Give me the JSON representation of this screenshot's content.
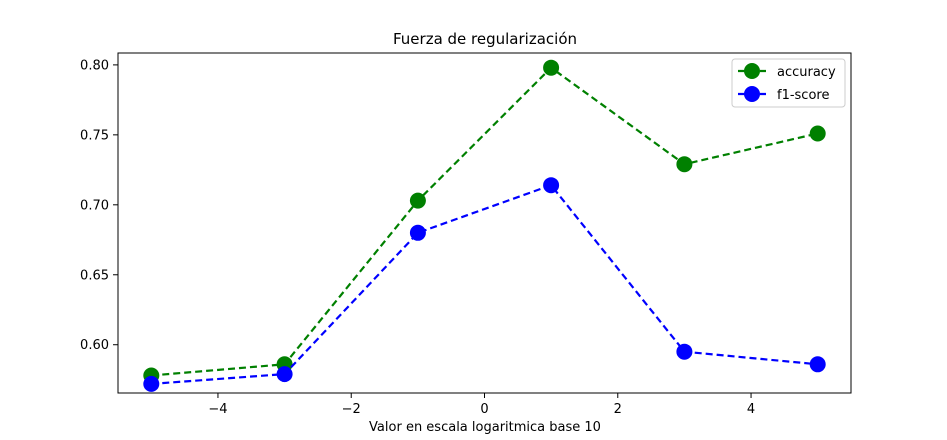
{
  "chart_data": {
    "type": "line",
    "title": "Fuerza de regularización",
    "xlabel": "Valor en escala logaritmica base 10",
    "ylabel": "",
    "x": [
      -5,
      -3,
      -1,
      1,
      3,
      5
    ],
    "xlim": [
      -5.5,
      5.5
    ],
    "ylim": [
      0.5655,
      0.8085
    ],
    "xticks": [
      -4,
      -2,
      0,
      2,
      4
    ],
    "xtick_labels": [
      "−4",
      "−2",
      "0",
      "2",
      "4"
    ],
    "yticks": [
      0.6,
      0.65,
      0.7,
      0.75,
      0.8
    ],
    "ytick_labels": [
      "0.60",
      "0.65",
      "0.70",
      "0.75",
      "0.80"
    ],
    "grid": false,
    "legend_position": "top-right",
    "series": [
      {
        "name": "accuracy",
        "color": "#008000",
        "line_style": "dashed",
        "marker": "circle",
        "values": [
          0.578,
          0.586,
          0.703,
          0.798,
          0.729,
          0.751
        ]
      },
      {
        "name": "f1-score",
        "color": "#0000ff",
        "line_style": "dashed",
        "marker": "circle",
        "values": [
          0.572,
          0.579,
          0.68,
          0.714,
          0.595,
          0.586
        ]
      }
    ]
  }
}
